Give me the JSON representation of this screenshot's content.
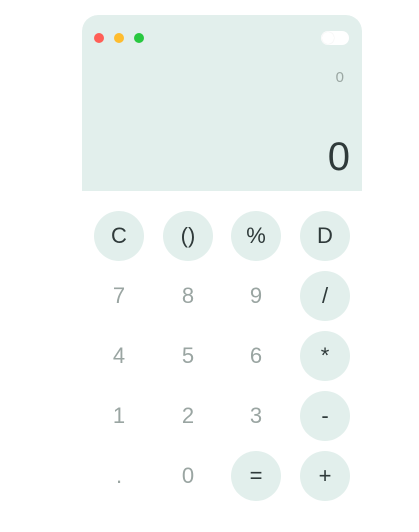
{
  "window": {
    "controls": [
      {
        "name": "close",
        "color": "#ff5f57"
      },
      {
        "name": "minimize",
        "color": "#febc2e"
      },
      {
        "name": "maximize",
        "color": "#28c840"
      }
    ],
    "theme_toggle": {
      "state": "off"
    }
  },
  "display": {
    "history": "0",
    "result": "0"
  },
  "keypad": {
    "row1": [
      "C",
      "()",
      "%",
      "D"
    ],
    "row2": [
      "7",
      "8",
      "9",
      "/"
    ],
    "row3": [
      "4",
      "5",
      "6",
      "*"
    ],
    "row4": [
      "1",
      "2",
      "3",
      "-"
    ],
    "row5": [
      ".",
      "0",
      "=",
      "+"
    ]
  },
  "colors": {
    "display_bg": "#e2efec",
    "key_bg": "#e2efec",
    "digit_text": "#9aa5a2",
    "operator_text": "#2f3a3a"
  }
}
